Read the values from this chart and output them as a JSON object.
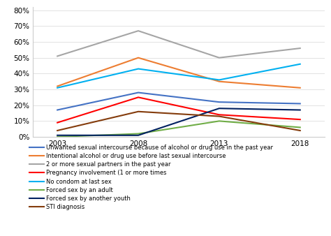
{
  "years": [
    2003,
    2008,
    2013,
    2018
  ],
  "series": [
    {
      "label": "Unwanted sexual intercourse because of alcohol or drug use in the past year",
      "color": "#4472C4",
      "values": [
        0.17,
        0.28,
        0.22,
        0.21
      ]
    },
    {
      "label": "Intentional alcohol or drug use before last sexual intercourse",
      "color": "#ED7D31",
      "values": [
        0.32,
        0.5,
        0.35,
        0.31
      ]
    },
    {
      "label": "2 or more sexual partners in the past year",
      "color": "#A5A5A5",
      "values": [
        0.51,
        0.67,
        0.5,
        0.56
      ]
    },
    {
      "label": "Pregnancy involvement (1 or more times",
      "color": "#FF0000",
      "values": [
        0.09,
        0.25,
        0.14,
        0.11
      ]
    },
    {
      "label": "No condom at last sex",
      "color": "#00B0F0",
      "values": [
        0.31,
        0.43,
        0.36,
        0.46
      ]
    },
    {
      "label": "Forced sex by an adult",
      "color": "#70AD47",
      "values": [
        0.0,
        0.02,
        0.1,
        0.06
      ]
    },
    {
      "label": "Forced sex by another youth",
      "color": "#002060",
      "values": [
        0.01,
        0.01,
        0.18,
        0.17
      ]
    },
    {
      "label": "STI diagnosis",
      "color": "#843C0C",
      "values": [
        0.04,
        0.16,
        0.13,
        0.04
      ]
    }
  ],
  "xlim": [
    2001.5,
    2019.5
  ],
  "ylim": [
    0.0,
    0.82
  ],
  "yticks": [
    0.0,
    0.1,
    0.2,
    0.3,
    0.4,
    0.5,
    0.6,
    0.7,
    0.8
  ],
  "xticks": [
    2003,
    2008,
    2013,
    2018
  ],
  "background_color": "#FFFFFF"
}
